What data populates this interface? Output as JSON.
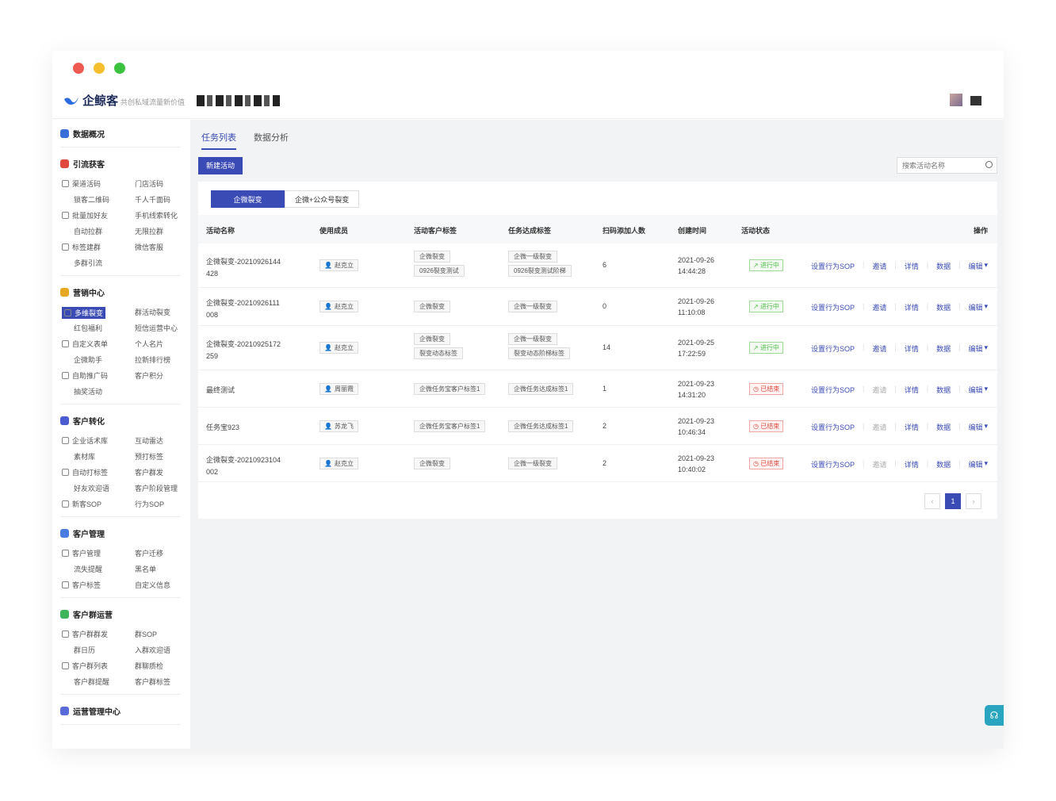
{
  "traffic_colors": {
    "red": "#ee5a52",
    "yellow": "#f5be2d",
    "green": "#3bc23e"
  },
  "header": {
    "logo": "企鲸客",
    "slogan": "共创私域流量新价值"
  },
  "sidebar": {
    "sections": [
      {
        "title": "数据概况",
        "color": "#3b6fd8"
      },
      {
        "title": "引流获客",
        "color": "#e0473d",
        "items": [
          "渠道活码",
          "门店活码",
          "锁客二维码",
          "千人千面码",
          "批量加好友",
          "手机线索转化",
          "自动拉群",
          "无限拉群",
          "标签建群",
          "微信客服",
          "多群引流"
        ]
      },
      {
        "title": "营销中心",
        "color": "#e6a823",
        "items": [
          "多维裂变",
          "群活动裂变",
          "红包福利",
          "短信运营中心",
          "自定义表单",
          "个人名片",
          "企微助手",
          "拉新排行榜",
          "自助推广码",
          "客户积分",
          "抽奖活动"
        ]
      },
      {
        "title": "客户转化",
        "color": "#4b5bd0",
        "items": [
          "企业话术库",
          "互动雷达",
          "素材库",
          "预打标签",
          "自动打标签",
          "客户群发",
          "好友欢迎语",
          "客户阶段管理",
          "新客SOP",
          "行为SOP"
        ]
      },
      {
        "title": "客户管理",
        "color": "#4a7be0",
        "items": [
          "客户管理",
          "客户迁移",
          "流失提醒",
          "黑名单",
          "客户标签",
          "自定义信息"
        ]
      },
      {
        "title": "客户群运营",
        "color": "#3cb55a",
        "items": [
          "客户群群发",
          "群SOP",
          "群日历",
          "入群欢迎语",
          "客户群列表",
          "群聊质检",
          "客户群提醒",
          "客户群标签"
        ]
      },
      {
        "title": "运营管理中心",
        "color": "#5a6ad8"
      }
    ]
  },
  "tabs": [
    "任务列表",
    "数据分析"
  ],
  "new_button": "新建活动",
  "search_placeholder": "搜索活动名称",
  "segments": [
    "企微裂变",
    "企微+公众号裂变"
  ],
  "columns": [
    "活动名称",
    "使用成员",
    "活动客户标签",
    "任务达成标签",
    "扫码添加人数",
    "创建时间",
    "活动状态",
    "操作"
  ],
  "rows": [
    {
      "name1": "企微裂变-20210926144",
      "name2": "428",
      "member": "赵克立",
      "tags": [
        "企微裂变",
        "0926裂变测试"
      ],
      "goal_tags": [
        "企微一级裂变",
        "0926裂变测试阶梯"
      ],
      "count": "6",
      "date": "2021-09-26",
      "time": "14:44:28",
      "status": "进行中",
      "state": "going"
    },
    {
      "name1": "企微裂变-20210926111",
      "name2": "008",
      "member": "赵克立",
      "tags": [
        "企微裂变"
      ],
      "goal_tags": [
        "企微一级裂变"
      ],
      "count": "0",
      "date": "2021-09-26",
      "time": "11:10:08",
      "status": "进行中",
      "state": "going"
    },
    {
      "name1": "企微裂变-20210925172",
      "name2": "259",
      "member": "赵克立",
      "tags": [
        "企微裂变",
        "裂变动态标签"
      ],
      "goal_tags": [
        "企微一级裂变",
        "裂变动态阶梯标签"
      ],
      "count": "14",
      "date": "2021-09-25",
      "time": "17:22:59",
      "status": "进行中",
      "state": "going"
    },
    {
      "name1": "最终测试",
      "name2": "",
      "member": "周丽霞",
      "tags": [
        "企微任务宝客户标签1"
      ],
      "goal_tags": [
        "企微任务达成标签1"
      ],
      "count": "1",
      "date": "2021-09-23",
      "time": "14:31:20",
      "status": "已结束",
      "state": "ended"
    },
    {
      "name1": "任务宝923",
      "name2": "",
      "member": "苏龙飞",
      "tags": [
        "企微任务宝客户标签1"
      ],
      "goal_tags": [
        "企微任务达成标签1"
      ],
      "count": "2",
      "date": "2021-09-23",
      "time": "10:46:34",
      "status": "已结束",
      "state": "ended"
    },
    {
      "name1": "企微裂变-20210923104",
      "name2": "002",
      "member": "赵克立",
      "tags": [
        "企微裂变"
      ],
      "goal_tags": [
        "企微一级裂变"
      ],
      "count": "2",
      "date": "2021-09-23",
      "time": "10:40:02",
      "status": "已结束",
      "state": "ended"
    }
  ],
  "ops": [
    "设置行为SOP",
    "邀请",
    "详情",
    "数据",
    "编辑"
  ],
  "pager": {
    "current": "1",
    "prev": "‹",
    "next": "›"
  },
  "help_icon": "headset-icon"
}
